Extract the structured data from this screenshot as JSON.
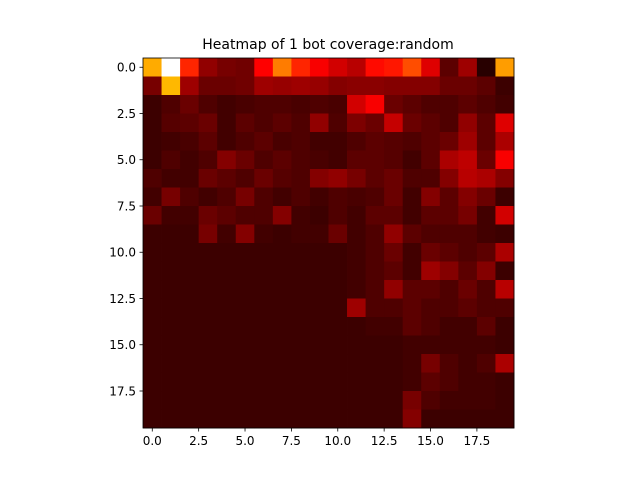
{
  "chart_data": {
    "type": "heatmap",
    "title": "Heatmap of 1 bot coverage:random",
    "xlabel": "",
    "ylabel": "",
    "rows": 20,
    "cols": 20,
    "xlim": [
      -0.5,
      19.5
    ],
    "ylim": [
      19.5,
      -0.5
    ],
    "x_ticks": [
      0.0,
      2.5,
      5.0,
      7.5,
      10.0,
      12.5,
      15.0,
      17.5
    ],
    "x_tick_labels": [
      "0.0",
      "2.5",
      "5.0",
      "7.5",
      "10.0",
      "12.5",
      "15.0",
      "17.5"
    ],
    "y_ticks": [
      0.0,
      2.5,
      5.0,
      7.5,
      10.0,
      12.5,
      15.0,
      17.5
    ],
    "y_tick_labels": [
      "0.0",
      "2.5",
      "5.0",
      "7.5",
      "10.0",
      "12.5",
      "15.0",
      "17.5"
    ],
    "colormap": "hot",
    "grid": false,
    "values": [
      [
        0.62,
        1.0,
        0.42,
        0.18,
        0.14,
        0.13,
        0.36,
        0.55,
        0.42,
        0.34,
        0.28,
        0.24,
        0.38,
        0.4,
        0.48,
        0.3,
        0.1,
        0.2,
        0.02,
        0.6
      ],
      [
        0.14,
        0.64,
        0.2,
        0.12,
        0.12,
        0.13,
        0.2,
        0.19,
        0.2,
        0.19,
        0.16,
        0.17,
        0.17,
        0.16,
        0.16,
        0.16,
        0.12,
        0.12,
        0.1,
        0.05
      ],
      [
        0.05,
        0.08,
        0.12,
        0.08,
        0.06,
        0.07,
        0.08,
        0.08,
        0.07,
        0.08,
        0.07,
        0.28,
        0.34,
        0.12,
        0.1,
        0.08,
        0.08,
        0.1,
        0.08,
        0.06
      ],
      [
        0.05,
        0.09,
        0.1,
        0.12,
        0.06,
        0.1,
        0.08,
        0.1,
        0.08,
        0.18,
        0.08,
        0.15,
        0.12,
        0.26,
        0.12,
        0.1,
        0.08,
        0.18,
        0.1,
        0.3
      ],
      [
        0.05,
        0.06,
        0.07,
        0.1,
        0.06,
        0.08,
        0.1,
        0.07,
        0.08,
        0.06,
        0.06,
        0.08,
        0.1,
        0.09,
        0.08,
        0.1,
        0.12,
        0.2,
        0.1,
        0.22
      ],
      [
        0.05,
        0.08,
        0.06,
        0.08,
        0.16,
        0.12,
        0.08,
        0.1,
        0.08,
        0.07,
        0.06,
        0.1,
        0.1,
        0.09,
        0.06,
        0.1,
        0.22,
        0.25,
        0.12,
        0.34
      ],
      [
        0.08,
        0.06,
        0.06,
        0.12,
        0.1,
        0.08,
        0.12,
        0.09,
        0.08,
        0.16,
        0.18,
        0.14,
        0.1,
        0.12,
        0.08,
        0.08,
        0.16,
        0.24,
        0.22,
        0.16
      ],
      [
        0.06,
        0.14,
        0.08,
        0.06,
        0.08,
        0.14,
        0.08,
        0.06,
        0.08,
        0.06,
        0.08,
        0.07,
        0.08,
        0.12,
        0.06,
        0.16,
        0.1,
        0.16,
        0.12,
        0.05
      ],
      [
        0.12,
        0.06,
        0.06,
        0.12,
        0.1,
        0.08,
        0.08,
        0.16,
        0.06,
        0.05,
        0.08,
        0.06,
        0.1,
        0.1,
        0.06,
        0.1,
        0.1,
        0.14,
        0.06,
        0.28
      ],
      [
        0.05,
        0.05,
        0.05,
        0.14,
        0.06,
        0.16,
        0.06,
        0.05,
        0.06,
        0.06,
        0.12,
        0.06,
        0.08,
        0.18,
        0.1,
        0.08,
        0.08,
        0.08,
        0.06,
        0.05
      ],
      [
        0.05,
        0.05,
        0.05,
        0.05,
        0.05,
        0.05,
        0.05,
        0.05,
        0.05,
        0.05,
        0.05,
        0.06,
        0.08,
        0.12,
        0.06,
        0.12,
        0.1,
        0.08,
        0.1,
        0.22
      ],
      [
        0.05,
        0.05,
        0.05,
        0.05,
        0.05,
        0.05,
        0.05,
        0.05,
        0.05,
        0.05,
        0.05,
        0.06,
        0.08,
        0.1,
        0.06,
        0.2,
        0.16,
        0.1,
        0.16,
        0.05
      ],
      [
        0.05,
        0.05,
        0.05,
        0.05,
        0.05,
        0.05,
        0.05,
        0.05,
        0.05,
        0.05,
        0.05,
        0.06,
        0.08,
        0.18,
        0.1,
        0.1,
        0.08,
        0.12,
        0.08,
        0.24
      ],
      [
        0.05,
        0.05,
        0.05,
        0.05,
        0.05,
        0.05,
        0.05,
        0.05,
        0.05,
        0.05,
        0.05,
        0.2,
        0.08,
        0.08,
        0.1,
        0.08,
        0.08,
        0.1,
        0.08,
        0.08
      ],
      [
        0.05,
        0.05,
        0.05,
        0.05,
        0.05,
        0.05,
        0.05,
        0.05,
        0.05,
        0.05,
        0.05,
        0.05,
        0.06,
        0.06,
        0.1,
        0.08,
        0.06,
        0.06,
        0.1,
        0.05
      ],
      [
        0.05,
        0.05,
        0.05,
        0.05,
        0.05,
        0.05,
        0.05,
        0.05,
        0.05,
        0.05,
        0.05,
        0.05,
        0.05,
        0.05,
        0.06,
        0.06,
        0.06,
        0.06,
        0.06,
        0.05
      ],
      [
        0.05,
        0.05,
        0.05,
        0.05,
        0.05,
        0.05,
        0.05,
        0.05,
        0.05,
        0.05,
        0.05,
        0.05,
        0.05,
        0.05,
        0.06,
        0.14,
        0.08,
        0.06,
        0.08,
        0.22
      ],
      [
        0.05,
        0.05,
        0.05,
        0.05,
        0.05,
        0.05,
        0.05,
        0.05,
        0.05,
        0.05,
        0.05,
        0.05,
        0.05,
        0.05,
        0.06,
        0.1,
        0.08,
        0.06,
        0.06,
        0.05
      ],
      [
        0.05,
        0.05,
        0.05,
        0.05,
        0.05,
        0.05,
        0.05,
        0.05,
        0.05,
        0.05,
        0.05,
        0.05,
        0.05,
        0.05,
        0.14,
        0.08,
        0.06,
        0.06,
        0.06,
        0.05
      ],
      [
        0.05,
        0.05,
        0.05,
        0.05,
        0.05,
        0.05,
        0.05,
        0.05,
        0.05,
        0.05,
        0.05,
        0.05,
        0.05,
        0.05,
        0.16,
        0.05,
        0.05,
        0.05,
        0.05,
        0.05
      ]
    ]
  }
}
